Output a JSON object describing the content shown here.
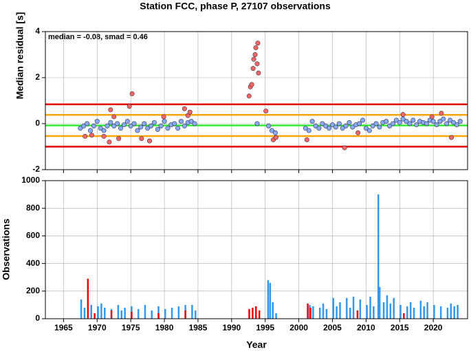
{
  "chart_data": [
    {
      "type": "scatter",
      "title": "Station FCC, phase P, 27107 observations",
      "ylabel": "Median residual [s]",
      "annotation": "median = -0.08, smad = 0.46",
      "xlim": [
        1962.3,
        2025.1
      ],
      "xticks": [
        1965,
        1970,
        1975,
        1980,
        1985,
        1990,
        1995,
        2000,
        2005,
        2010,
        2015,
        2020
      ],
      "ylim": [
        -2,
        4
      ],
      "yticks": [
        -2,
        0,
        2,
        4
      ],
      "grid": true,
      "lines": [
        {
          "value": 0.84,
          "color": "#e00000"
        },
        {
          "value": 0.38,
          "color": "#ffa500"
        },
        {
          "value": -0.08,
          "color": "#33ee33"
        },
        {
          "value": -0.54,
          "color": "#ffa500"
        },
        {
          "value": -1.0,
          "color": "#e00000"
        }
      ],
      "series": [
        {
          "color": "#ff6666",
          "x": [
            1968.2,
            1969.2,
            1971,
            1971.8,
            1972,
            1972.5,
            1973.2,
            1974.8,
            1975.2,
            1976.6,
            1977.8,
            1979.9,
            1983,
            1983.5,
            1983.8,
            1992.6,
            1992.8,
            1993,
            1993.2,
            1993.3,
            1993.5,
            1993.6,
            1993.8,
            1993.9,
            1994,
            1995.1,
            1996.2,
            1996.6,
            2001.2,
            2006.8,
            2008.8,
            2015.5,
            2019.8,
            2021.2,
            2022.7
          ],
          "values": [
            -0.55,
            -0.5,
            -0.55,
            -0.8,
            0.6,
            0.3,
            -0.65,
            0.75,
            1.3,
            -0.65,
            -0.75,
            0.3,
            0.65,
            0.35,
            0.5,
            1.2,
            1.6,
            1.7,
            2.4,
            2.8,
            3.0,
            3.3,
            2.6,
            3.5,
            2.2,
            0.55,
            -0.7,
            -0.6,
            -0.7,
            -1.05,
            -0.4,
            0.4,
            0.3,
            0.45,
            -0.6
          ]
        },
        {
          "color": "#88aaff",
          "x": [
            1967.5,
            1968,
            1968.5,
            1969,
            1969.5,
            1970,
            1970.5,
            1971,
            1971.5,
            1972,
            1972.5,
            1973,
            1973.5,
            1974,
            1974.5,
            1975,
            1975.5,
            1976,
            1976.5,
            1977,
            1977.5,
            1978,
            1978.5,
            1979,
            1979.5,
            1980,
            1980.5,
            1981,
            1981.5,
            1982,
            1982.5,
            1983,
            1983.5,
            1984,
            1984.5,
            1993.8,
            1995.5,
            1996,
            1996.5,
            2001,
            2001.5,
            2002,
            2002.5,
            2003,
            2003.5,
            2004,
            2004.5,
            2005,
            2005.5,
            2006,
            2006.5,
            2007,
            2007.5,
            2008,
            2008.5,
            2009,
            2009.5,
            2010,
            2010.5,
            2011,
            2011.5,
            2012,
            2012.5,
            2013,
            2013.5,
            2014,
            2014.5,
            2015,
            2015.5,
            2016,
            2016.5,
            2017,
            2017.5,
            2018,
            2018.5,
            2019,
            2019.5,
            2020,
            2020.5,
            2021,
            2021.5,
            2022,
            2022.5,
            2023,
            2023.5,
            2024
          ],
          "values": [
            -0.2,
            -0.1,
            0.0,
            -0.3,
            -0.1,
            0.1,
            -0.2,
            -0.3,
            -0.1,
            0.05,
            -0.1,
            0.0,
            -0.2,
            -0.05,
            0.1,
            -0.1,
            0.0,
            -0.3,
            -0.15,
            0.0,
            -0.2,
            -0.1,
            0.05,
            -0.25,
            -0.1,
            0.1,
            -0.2,
            -0.05,
            0.0,
            -0.2,
            0.1,
            -0.1,
            0.05,
            0.1,
            0.0,
            0.0,
            -0.1,
            -0.3,
            -0.4,
            -0.2,
            -0.3,
            0.1,
            -0.1,
            -0.2,
            0.0,
            -0.1,
            -0.2,
            -0.05,
            -0.15,
            0.0,
            -0.2,
            -0.1,
            0.05,
            -0.15,
            -0.05,
            0.0,
            0.15,
            -0.2,
            -0.3,
            -0.1,
            0.0,
            -0.15,
            0.05,
            0.1,
            -0.1,
            0.0,
            0.15,
            0.05,
            0.2,
            0.1,
            0.0,
            0.15,
            -0.05,
            0.1,
            0.05,
            0.0,
            0.15,
            0.1,
            -0.05,
            0.1,
            0.2,
            0.0,
            0.15,
            0.05,
            -0.05,
            0.1
          ]
        }
      ]
    },
    {
      "type": "bar",
      "ylabel": "Observations",
      "xlabel": "Year",
      "xlim": [
        1962.3,
        2025.1
      ],
      "xticks": [
        1965,
        1970,
        1975,
        1980,
        1985,
        1990,
        1995,
        2000,
        2005,
        2010,
        2015,
        2020
      ],
      "ylim": [
        0,
        1000
      ],
      "yticks": [
        0,
        200,
        400,
        600,
        800,
        1000
      ],
      "grid": true,
      "series": [
        {
          "color": "#3399ee",
          "x": [
            1967.5,
            1968,
            1969,
            1970,
            1970.5,
            1971,
            1972,
            1973,
            1973.5,
            1974,
            1975,
            1976,
            1977,
            1978,
            1979,
            1980,
            1981,
            1982,
            1983,
            1984,
            1984.5,
            1995.3,
            1995.6,
            1996,
            1996.5,
            2001.5,
            2002,
            2003,
            2003.5,
            2004,
            2005,
            2005.5,
            2006,
            2007,
            2007.5,
            2008,
            2009,
            2010,
            2010.5,
            2011,
            2011.7,
            2011.9,
            2012.5,
            2013,
            2013.5,
            2014,
            2015,
            2016,
            2016.5,
            2017,
            2018,
            2018.5,
            2019,
            2020,
            2021,
            2022,
            2022.5,
            2023,
            2023.5
          ],
          "values": [
            140,
            80,
            100,
            90,
            110,
            80,
            70,
            100,
            60,
            80,
            90,
            70,
            100,
            60,
            90,
            70,
            80,
            90,
            100,
            100,
            60,
            280,
            260,
            120,
            40,
            100,
            90,
            80,
            110,
            70,
            150,
            90,
            120,
            150,
            80,
            160,
            140,
            100,
            160,
            90,
            900,
            230,
            120,
            170,
            110,
            150,
            100,
            90,
            120,
            80,
            130,
            90,
            120,
            100,
            90,
            80,
            110,
            90,
            100
          ]
        },
        {
          "color": "#ee0000",
          "x": [
            1968.5,
            1969.5,
            1972,
            1975,
            1979,
            1983,
            1992.5,
            1993,
            1993.5,
            1994,
            2001.2,
            2001.6,
            2008.6,
            2015.5
          ],
          "values": [
            290,
            40,
            60,
            50,
            40,
            60,
            70,
            80,
            90,
            60,
            110,
            80,
            60,
            40
          ]
        }
      ]
    }
  ]
}
